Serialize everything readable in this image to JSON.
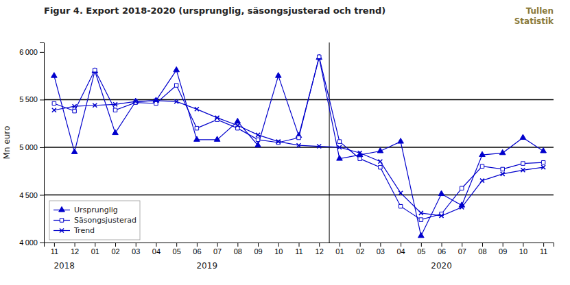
{
  "chart_data": {
    "type": "line",
    "title": "Figur 4. Export 2018-2020 (ursprunglig, säsongsjusterad och trend)",
    "ylabel": "Mn euro",
    "annotations": [
      "Tullen",
      "Statistik"
    ],
    "categories": [
      "11",
      "12",
      "01",
      "02",
      "03",
      "04",
      "05",
      "06",
      "07",
      "08",
      "09",
      "10",
      "11",
      "12",
      "01",
      "02",
      "03",
      "04",
      "05",
      "06",
      "07",
      "08",
      "09",
      "10",
      "11"
    ],
    "series": [
      {
        "name": "Ursprunglig",
        "color": "#0000CC",
        "marker": "triangle",
        "values": [
          5750,
          4950,
          5800,
          5150,
          5480,
          5490,
          5810,
          5080,
          5080,
          5270,
          5020,
          5750,
          5120,
          5940,
          4880,
          4920,
          4960,
          5060,
          4070,
          4510,
          4390,
          4920,
          4940,
          5100,
          4960
        ]
      },
      {
        "name": "Säsongsjusterad",
        "color": "#0000CC",
        "marker": "square-open",
        "values": [
          5460,
          5380,
          5810,
          5390,
          5470,
          5460,
          5650,
          5200,
          5290,
          5200,
          5080,
          5050,
          5100,
          5950,
          5060,
          4880,
          4790,
          4380,
          4240,
          4300,
          4570,
          4800,
          4770,
          4830,
          4840
        ]
      },
      {
        "name": "Trend",
        "color": "#0000CC",
        "marker": "x",
        "values": [
          5390,
          5430,
          5440,
          5450,
          5480,
          5490,
          5480,
          5400,
          5310,
          5230,
          5130,
          5060,
          5020,
          5010,
          5000,
          4940,
          4850,
          4520,
          4310,
          4280,
          4370,
          4650,
          4720,
          4760,
          4790
        ]
      }
    ],
    "ylim": [
      4000,
      6100
    ],
    "yticks": [
      {
        "value": 4000,
        "label": "4 000"
      },
      {
        "value": 4500,
        "label": "4 500"
      },
      {
        "value": 5000,
        "label": "5 000"
      },
      {
        "value": 5500,
        "label": "5 500"
      },
      {
        "value": 6000,
        "label": "6 000"
      }
    ],
    "hlines": [
      5000,
      5500,
      4500
    ],
    "vlines": [
      13.5
    ],
    "year_labels": [
      {
        "label": "2018",
        "start": 0,
        "end": 1
      },
      {
        "label": "2019",
        "start": 2,
        "end": 13
      },
      {
        "label": "2020",
        "start": 14,
        "end": 24
      }
    ],
    "grid": false,
    "legend": "lower left"
  }
}
